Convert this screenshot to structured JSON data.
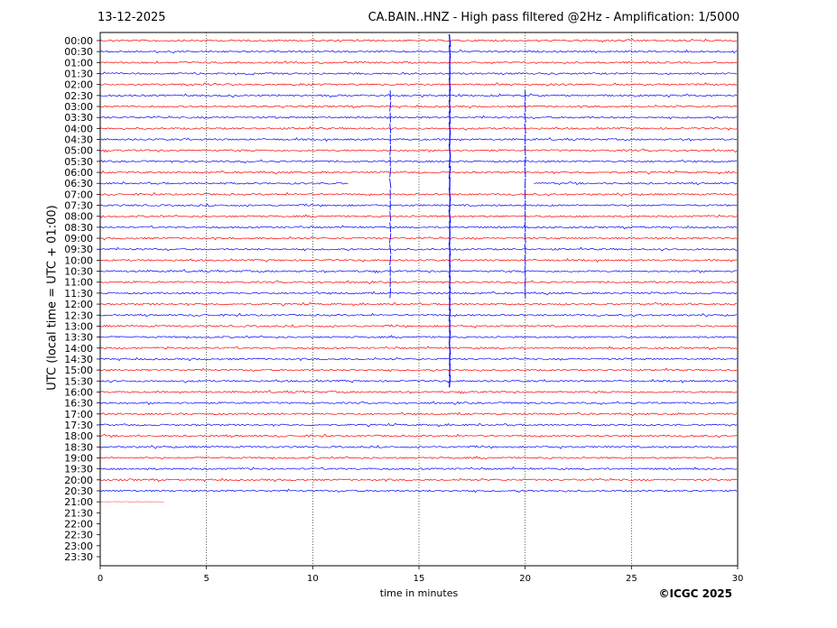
{
  "header": {
    "date": "13-12-2025",
    "title": "CA.BAIN..HNZ - High pass filtered @2Hz - Amplification: 1/5000"
  },
  "footer": {
    "copyright": "©ICGC 2025"
  },
  "chart_data": {
    "type": "line",
    "title": "CA.BAIN..HNZ - High pass filtered @2Hz - Amplification: 1/5000",
    "xlabel": "time in minutes",
    "ylabel": "UTC (local time = UTC + 01:00)",
    "xlim": [
      0,
      30
    ],
    "xticks": [
      0,
      5,
      10,
      15,
      20,
      25,
      30
    ],
    "grid_vertical_minutes": [
      5,
      10,
      15,
      20,
      25
    ],
    "row_labels": [
      "00:00",
      "00:30",
      "01:00",
      "01:30",
      "02:00",
      "02:30",
      "03:00",
      "03:30",
      "04:00",
      "04:30",
      "05:00",
      "05:30",
      "06:00",
      "06:30",
      "07:00",
      "07:30",
      "08:00",
      "08:30",
      "09:00",
      "09:30",
      "10:00",
      "10:30",
      "11:00",
      "11:30",
      "12:00",
      "12:30",
      "13:00",
      "13:30",
      "14:00",
      "14:30",
      "15:00",
      "15:30",
      "16:00",
      "16:30",
      "17:00",
      "17:30",
      "18:00",
      "18:30",
      "19:00",
      "19:30",
      "20:00",
      "20:30",
      "21:00",
      "21:30",
      "22:00",
      "22:30",
      "23:00",
      "23:30"
    ],
    "row_colors": [
      "#ff0000",
      "#0000ff"
    ],
    "colors": {
      "red": "#ff0000",
      "blue": "#0000ff",
      "grid": "#000000"
    },
    "last_trace_row": "21:00",
    "last_trace_end_minute": 3.0,
    "events": [
      {
        "minute": 16.45,
        "row_from": "00:00",
        "row_to": "15:30",
        "color": "#0000ff",
        "note": "large spike"
      },
      {
        "minute": 13.65,
        "row_from": "02:30",
        "row_to": "11:30",
        "color": "#0000ff"
      },
      {
        "minute": 20.0,
        "row_from": "02:30",
        "row_to": "11:30",
        "color": "#0000ff"
      }
    ],
    "gaps": [
      {
        "row": "06:30",
        "from_minute": 11.7,
        "to_minute": 20.4
      }
    ]
  }
}
